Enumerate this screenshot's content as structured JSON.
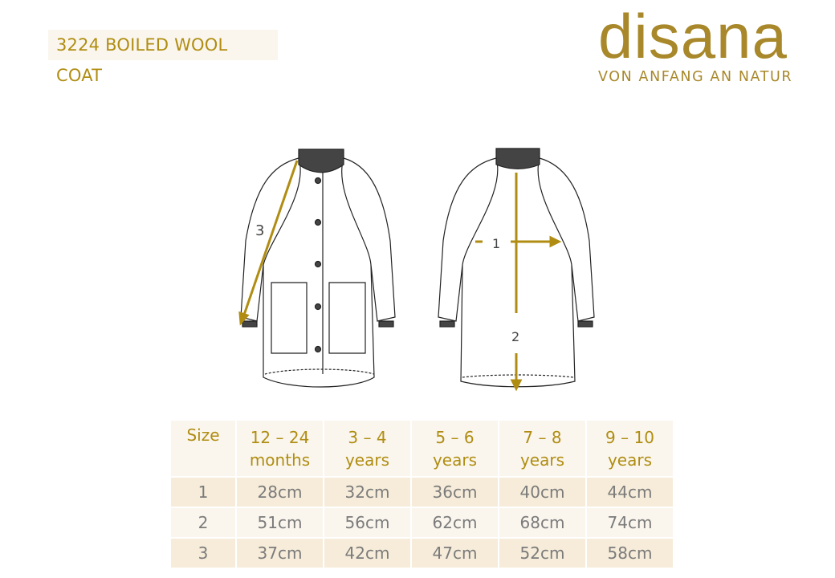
{
  "title": "3224 BOILED WOOL COAT",
  "logo": {
    "word": "disana",
    "tagline": "VON ANFANG AN NATUR"
  },
  "diagram": {
    "labels": {
      "sleeve": "3",
      "chest": "1",
      "length": "2"
    },
    "accent": "#b08d12"
  },
  "table": {
    "headers": [
      [
        "Size"
      ],
      [
        "12 – 24",
        "months"
      ],
      [
        "3 – 4",
        "years"
      ],
      [
        "5 – 6",
        "years"
      ],
      [
        "7 – 8",
        "years"
      ],
      [
        "9 – 10",
        "years"
      ]
    ],
    "rows": [
      [
        "1",
        "28cm",
        "32cm",
        "36cm",
        "40cm",
        "44cm"
      ],
      [
        "2",
        "51cm",
        "56cm",
        "62cm",
        "68cm",
        "74cm"
      ],
      [
        "3",
        "37cm",
        "42cm",
        "47cm",
        "52cm",
        "58cm"
      ]
    ]
  }
}
